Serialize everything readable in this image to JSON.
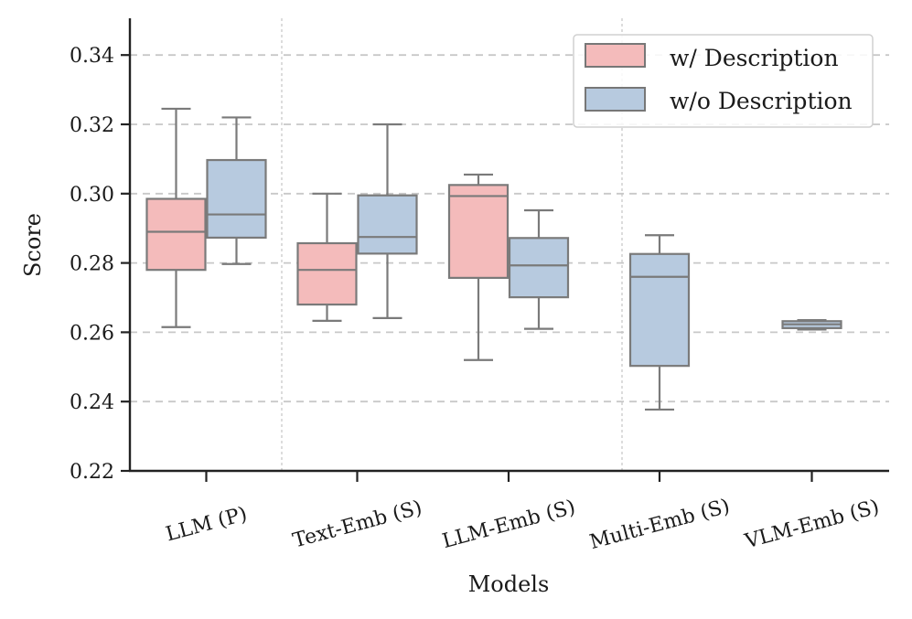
{
  "chart_data": {
    "type": "boxplot",
    "title": "",
    "xlabel": "Models",
    "ylabel": "Score",
    "ylim": [
      0.22,
      0.35
    ],
    "yticks": [
      "0.22",
      "0.24",
      "0.26",
      "0.28",
      "0.30",
      "0.32",
      "0.34"
    ],
    "categories": [
      "LLM (P)",
      "Text-Emb (S)",
      "LLM-Emb (S)",
      "Multi-Emb (S)",
      "VLM-Emb (S)"
    ],
    "legend_position": "top-right",
    "grid": "horizontal dashed",
    "series": [
      {
        "name": "w/ Description",
        "color": "#f4bbbb",
        "boxes": [
          {
            "category": "LLM (P)",
            "min": 0.2615,
            "q1": 0.278,
            "median": 0.289,
            "q3": 0.2985,
            "max": 0.3245
          },
          {
            "category": "Text-Emb (S)",
            "min": 0.2633,
            "q1": 0.268,
            "median": 0.278,
            "q3": 0.2857,
            "max": 0.3
          },
          {
            "category": "LLM-Emb (S)",
            "min": 0.252,
            "q1": 0.2757,
            "median": 0.2993,
            "q3": 0.3025,
            "max": 0.3055
          }
        ]
      },
      {
        "name": "w/o Description",
        "color": "#b7cadf",
        "boxes": [
          {
            "category": "LLM (P)",
            "min": 0.2797,
            "q1": 0.2873,
            "median": 0.294,
            "q3": 0.3097,
            "max": 0.322
          },
          {
            "category": "Text-Emb (S)",
            "min": 0.2641,
            "q1": 0.2827,
            "median": 0.2875,
            "q3": 0.2995,
            "max": 0.32
          },
          {
            "category": "LLM-Emb (S)",
            "min": 0.261,
            "q1": 0.2701,
            "median": 0.2793,
            "q3": 0.2872,
            "max": 0.2952
          },
          {
            "category": "Multi-Emb (S)",
            "min": 0.2377,
            "q1": 0.2503,
            "median": 0.276,
            "q3": 0.2826,
            "max": 0.288
          },
          {
            "category": "VLM-Emb (S)",
            "min": 0.2608,
            "q1": 0.2612,
            "median": 0.2623,
            "q3": 0.2632,
            "max": 0.2635
          }
        ]
      }
    ]
  }
}
